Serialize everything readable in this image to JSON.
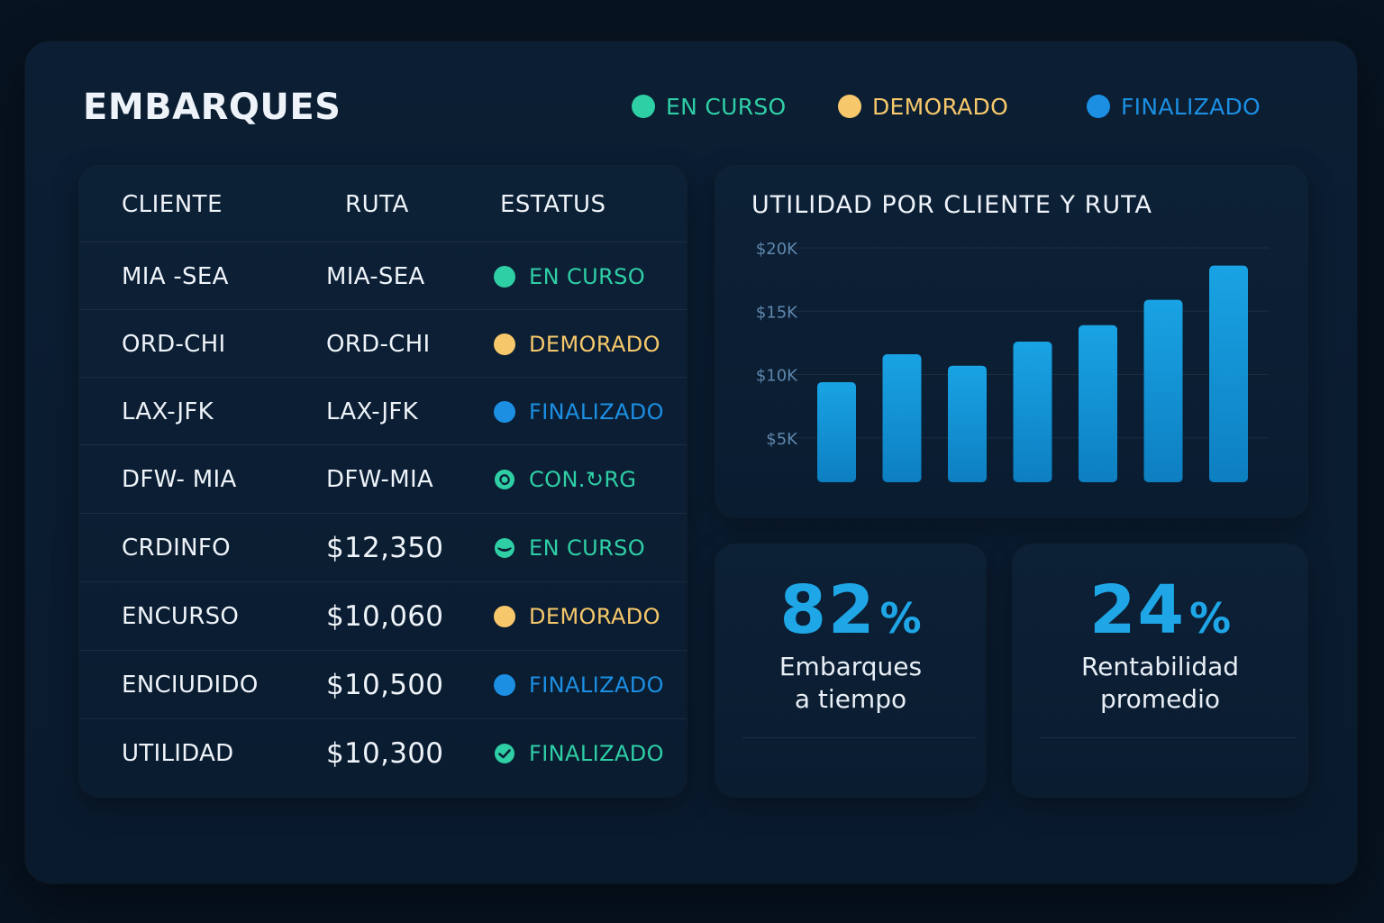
{
  "header": {
    "title": "EMBARQUES"
  },
  "legend": [
    {
      "label": "EN CURSO",
      "color": "#2fcfa6"
    },
    {
      "label": "DEMORADO",
      "color": "#f7c86b"
    },
    {
      "label": "FINALIZADO",
      "color": "#1c8fe3"
    }
  ],
  "table": {
    "headers": [
      "CLIENTE",
      "RUTA",
      "ESTATUS"
    ],
    "rows": [
      {
        "cliente": "MIA -SEA",
        "ruta": "MIA-SEA",
        "status": "EN CURSO",
        "status_color": "#2fcfa6",
        "icon": "dot"
      },
      {
        "cliente": "ORD-CHI",
        "ruta": "ORD-CHI",
        "status": "DEMORADO",
        "status_color": "#f7c86b",
        "icon": "dot"
      },
      {
        "cliente": "LAX-JFK",
        "ruta": "LAX-JFK",
        "status": "FINALIZADO",
        "status_color": "#1c8fe3",
        "icon": "dot"
      },
      {
        "cliente": "DFW- MIA",
        "ruta": "DFW-MIA",
        "status": "CON.↻RG",
        "status_color": "#2fcfa6",
        "icon": "refresh"
      },
      {
        "cliente": "CRDINFO",
        "ruta": "$12,350",
        "status": "EN CURSO",
        "status_color": "#2fcfa6",
        "icon": "half"
      },
      {
        "cliente": "ENCURSO",
        "ruta": "$10,060",
        "status": "DEMORADO",
        "status_color": "#f7c86b",
        "icon": "dot"
      },
      {
        "cliente": "ENCIUDIDO",
        "ruta": "$10,500",
        "status": "FINALIZADO",
        "status_color": "#1c8fe3",
        "icon": "dot"
      },
      {
        "cliente": "UTILIDAD",
        "ruta": "$10,300",
        "status": "FINALIZADO",
        "status_color": "#2fcfa6",
        "icon": "check"
      }
    ]
  },
  "chart_data": {
    "type": "bar",
    "title": "UTILIDAD POR CLIENTE Y RUTA",
    "xlabel": "",
    "ylabel": "",
    "yticks": [
      "$5K",
      "$10K",
      "$15K",
      "$20K"
    ],
    "ytick_values": [
      5000,
      10000,
      15000,
      20000
    ],
    "ylim": [
      1500,
      20000
    ],
    "grid": true,
    "values": [
      9400,
      11600,
      10700,
      12600,
      13900,
      15900,
      18600
    ],
    "bar_color": "#1596d6"
  },
  "kpis": [
    {
      "value": "82",
      "unit": "%",
      "label_line1": "Embarques",
      "label_line2": "a tiempo"
    },
    {
      "value": "24",
      "unit": "%",
      "label_line1": "Rentabilidad",
      "label_line2": "promedio"
    }
  ]
}
